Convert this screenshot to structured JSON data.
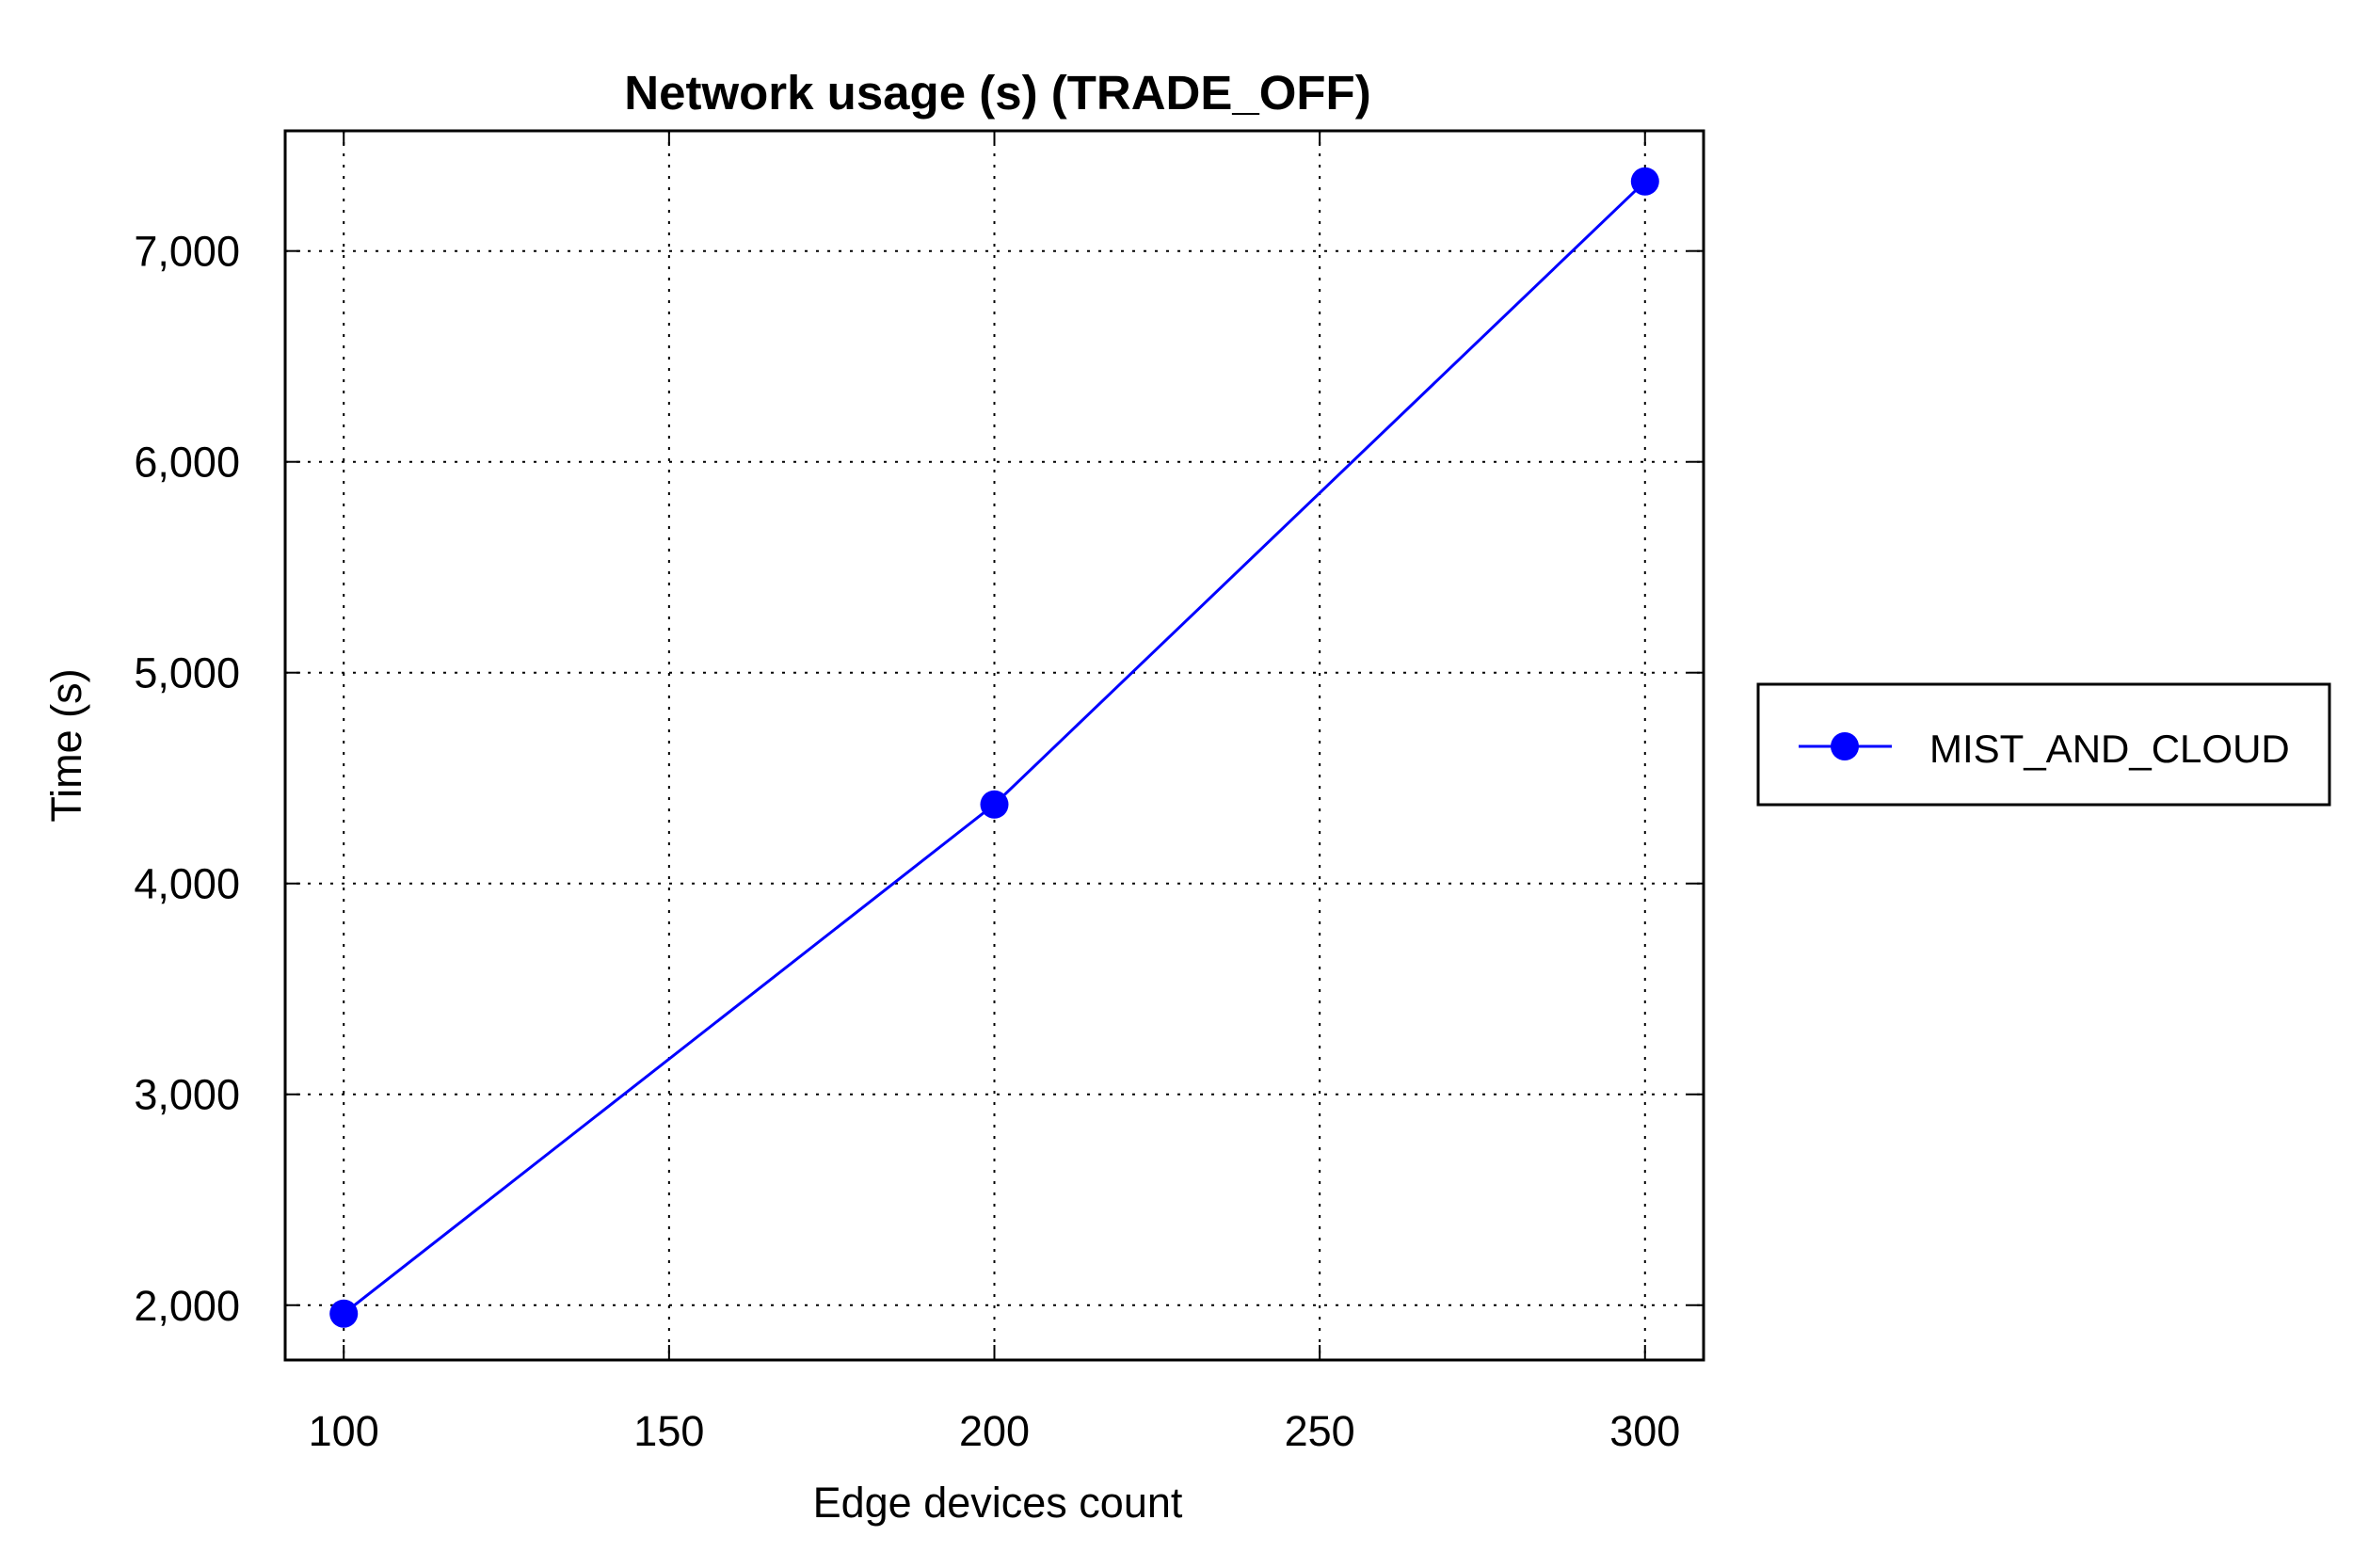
{
  "chart_data": {
    "type": "line",
    "title": "Network usage (s) (TRADE_OFF)",
    "xlabel": "Edge devices count",
    "ylabel": "Time (s)",
    "x": [
      100,
      200,
      300
    ],
    "series": [
      {
        "name": "MIST_AND_CLOUD",
        "values": [
          1960,
          4375,
          7330
        ],
        "color": "#0000ff",
        "marker": "circle"
      }
    ],
    "xlim": [
      91,
      309
    ],
    "ylim": [
      1740,
      7570
    ],
    "xticks": [
      100,
      150,
      200,
      250,
      300
    ],
    "xtick_labels": [
      "100",
      "150",
      "200",
      "250",
      "300"
    ],
    "yticks": [
      2000,
      3000,
      4000,
      5000,
      6000,
      7000
    ],
    "ytick_labels": [
      "2,000",
      "3,000",
      "4,000",
      "5,000",
      "6,000",
      "7,000"
    ],
    "grid": true,
    "legend_position": "right"
  }
}
